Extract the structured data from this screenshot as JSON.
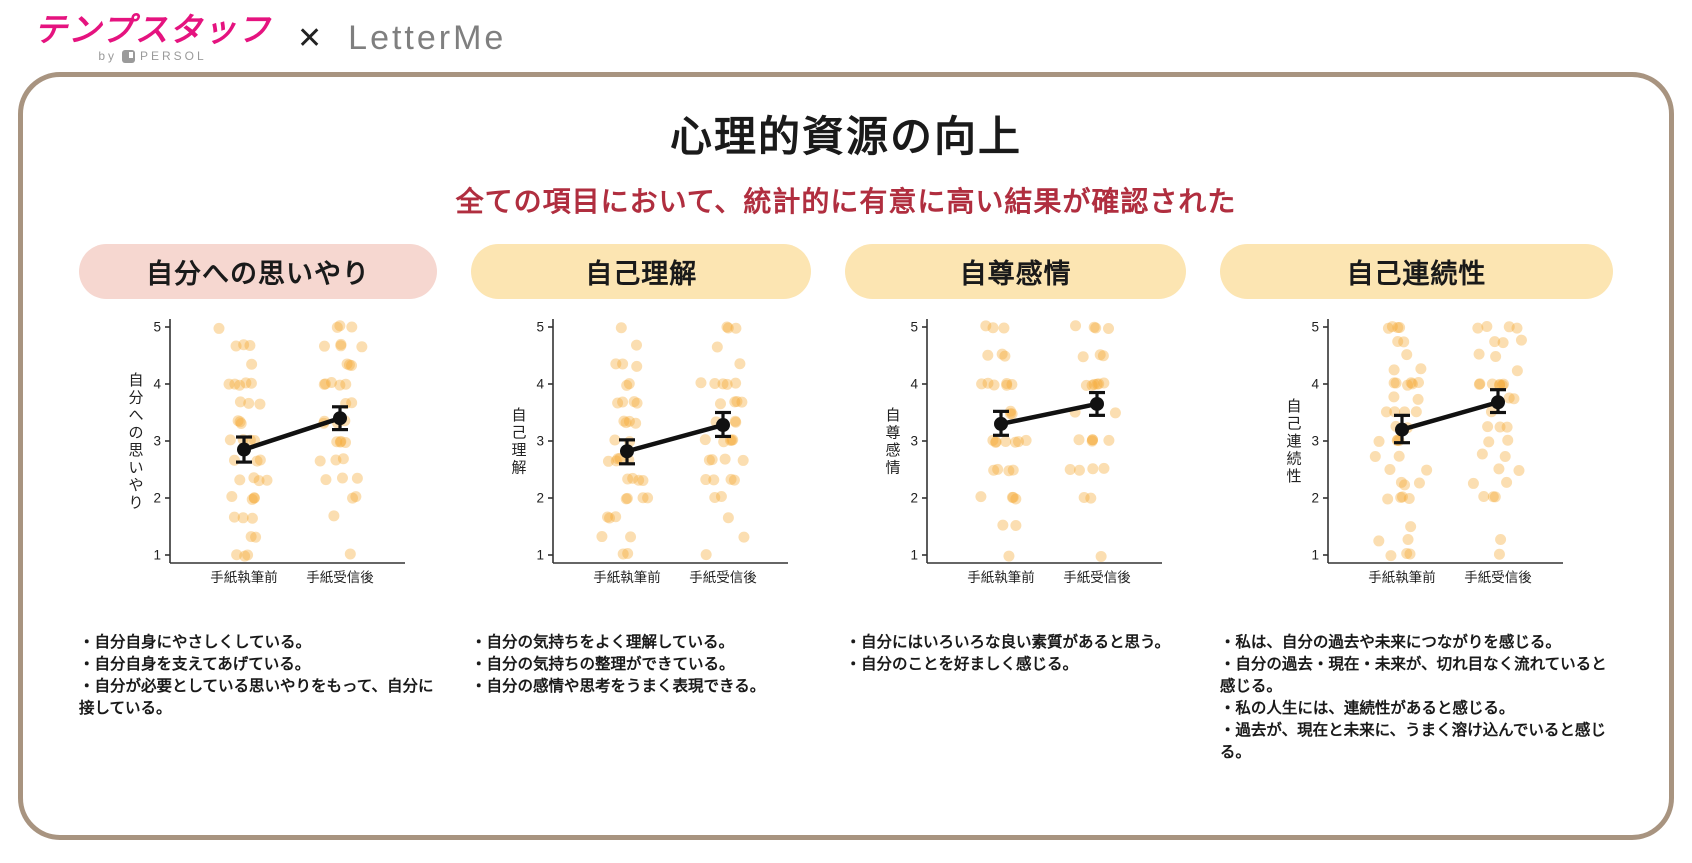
{
  "header": {
    "logo_main": "テンプスタッフ",
    "logo_by": "by",
    "logo_brand": "PERSOL",
    "separator": "✕",
    "partner_logo": "LetterMe"
  },
  "card": {
    "title": "心理的資源の向上",
    "subtitle": "全ての項目において、統計的に有意に高い結果が確認された"
  },
  "colors": {
    "accent_magenta": "#e5137f",
    "subtitle_red": "#b02e3f",
    "card_border_tan": "#a89480",
    "badge_pink": "#f6d7d0",
    "badge_cream": "#fce5b2",
    "dot_orange": "#f5a832",
    "mean_black": "#111111"
  },
  "panels": [
    {
      "badge": "自分への思いやり",
      "badge_style": "pink",
      "bullets": [
        "・自分自身にやさしくしている。",
        "・自分自身を支えてあげている。",
        "・自分が必要としている思いやりをもって、自分に接している。"
      ]
    },
    {
      "badge": "自己理解",
      "badge_style": "cream",
      "bullets": [
        "・自分の気持ちをよく理解している。",
        "・自分の気持ちの整理ができている。",
        "・自分の感情や思考をうまく表現できる。"
      ]
    },
    {
      "badge": "自尊感情",
      "badge_style": "cream",
      "bullets": [
        "・自分にはいろいろな良い素質があると思う。",
        "・自分のことを好ましく感じる。"
      ]
    },
    {
      "badge": "自己連続性",
      "badge_style": "cream",
      "bullets": [
        "・私は、自分の過去や未来につながりを感じる。",
        "・自分の過去・現在・未来が、切れ目なく流れていると感じる。",
        "・私の人生には、連続性があると感じる。",
        "・過去が、現在と未来に、うまく溶け込んでいると感じる。"
      ]
    }
  ],
  "chart_data": [
    {
      "type": "scatter",
      "title": "自分への思いやり",
      "ylabel": "自分への思いやり",
      "categories": [
        "手紙執筆前",
        "手紙受信後"
      ],
      "ylim": [
        1,
        5
      ],
      "yticks": [
        1,
        2,
        3,
        4,
        5
      ],
      "grid": false,
      "means": [
        2.85,
        3.4
      ],
      "ci": [
        [
          2.63,
          3.07
        ],
        [
          3.2,
          3.6
        ]
      ],
      "points": [
        [
          [
            5,
            1
          ],
          [
            4.67,
            3
          ],
          [
            4.33,
            1
          ],
          [
            4,
            5
          ],
          [
            3.67,
            3
          ],
          [
            3.33,
            3
          ],
          [
            3,
            4
          ],
          [
            2.67,
            3
          ],
          [
            2.33,
            4
          ],
          [
            2,
            4
          ],
          [
            1.67,
            3
          ],
          [
            1.33,
            2
          ],
          [
            1,
            3
          ]
        ],
        [
          [
            5,
            3
          ],
          [
            4.67,
            4
          ],
          [
            4.33,
            3
          ],
          [
            4,
            5
          ],
          [
            3.67,
            2
          ],
          [
            3.33,
            4
          ],
          [
            3,
            4
          ],
          [
            2.67,
            3
          ],
          [
            2.33,
            3
          ],
          [
            2,
            2
          ],
          [
            1.67,
            1
          ],
          [
            1,
            1
          ]
        ]
      ]
    },
    {
      "type": "scatter",
      "title": "自己理解",
      "ylabel": "自己理解",
      "categories": [
        "手紙執筆前",
        "手紙受信後"
      ],
      "ylim": [
        1,
        5
      ],
      "yticks": [
        1,
        2,
        3,
        4,
        5
      ],
      "grid": false,
      "means": [
        2.82,
        3.28
      ],
      "ci": [
        [
          2.6,
          3.02
        ],
        [
          3.08,
          3.5
        ]
      ],
      "points": [
        [
          [
            5,
            1
          ],
          [
            4.67,
            1
          ],
          [
            4.33,
            3
          ],
          [
            4,
            2
          ],
          [
            3.67,
            4
          ],
          [
            3.33,
            4
          ],
          [
            3,
            2
          ],
          [
            2.67,
            5
          ],
          [
            2.33,
            4
          ],
          [
            2,
            4
          ],
          [
            1.67,
            3
          ],
          [
            1.33,
            2
          ],
          [
            1,
            2
          ]
        ],
        [
          [
            5,
            3
          ],
          [
            4.67,
            1
          ],
          [
            4.33,
            1
          ],
          [
            4,
            5
          ],
          [
            3.67,
            4
          ],
          [
            3.33,
            3
          ],
          [
            3,
            5
          ],
          [
            2.67,
            4
          ],
          [
            2.33,
            4
          ],
          [
            2,
            2
          ],
          [
            1.67,
            1
          ],
          [
            1.33,
            1
          ],
          [
            1,
            1
          ]
        ]
      ]
    },
    {
      "type": "scatter",
      "title": "自尊感情",
      "ylabel": "自尊感情",
      "categories": [
        "手紙執筆前",
        "手紙受信後"
      ],
      "ylim": [
        1,
        5
      ],
      "yticks": [
        1,
        2,
        3,
        4,
        5
      ],
      "grid": false,
      "means": [
        3.3,
        3.65
      ],
      "ci": [
        [
          3.1,
          3.52
        ],
        [
          3.45,
          3.85
        ]
      ],
      "points": [
        [
          [
            5,
            3
          ],
          [
            4.5,
            3
          ],
          [
            4,
            6
          ],
          [
            3.5,
            3
          ],
          [
            3,
            7
          ],
          [
            2.5,
            4
          ],
          [
            2,
            4
          ],
          [
            1.5,
            2
          ],
          [
            1,
            1
          ]
        ],
        [
          [
            5,
            4
          ],
          [
            4.5,
            3
          ],
          [
            4,
            6
          ],
          [
            3.5,
            2
          ],
          [
            3,
            5
          ],
          [
            2.5,
            4
          ],
          [
            2,
            2
          ],
          [
            1,
            1
          ]
        ]
      ]
    },
    {
      "type": "scatter",
      "title": "自己連続性",
      "ylabel": "自己連続性",
      "categories": [
        "手紙執筆前",
        "手紙受信後"
      ],
      "ylim": [
        1,
        5
      ],
      "yticks": [
        1,
        2,
        3,
        4,
        5
      ],
      "grid": false,
      "means": [
        3.2,
        3.68
      ],
      "ci": [
        [
          2.97,
          3.45
        ],
        [
          3.5,
          3.9
        ]
      ],
      "points": [
        [
          [
            5,
            4
          ],
          [
            4.75,
            2
          ],
          [
            4.5,
            1
          ],
          [
            4.25,
            2
          ],
          [
            4,
            6
          ],
          [
            3.75,
            2
          ],
          [
            3.5,
            4
          ],
          [
            3.25,
            2
          ],
          [
            3,
            4
          ],
          [
            2.75,
            2
          ],
          [
            2.5,
            2
          ],
          [
            2.25,
            3
          ],
          [
            2,
            4
          ],
          [
            1.5,
            1
          ],
          [
            1.25,
            2
          ],
          [
            1,
            3
          ]
        ],
        [
          [
            5,
            4
          ],
          [
            4.75,
            3
          ],
          [
            4.5,
            2
          ],
          [
            4.25,
            1
          ],
          [
            4,
            7
          ],
          [
            3.75,
            2
          ],
          [
            3.5,
            1
          ],
          [
            3.25,
            3
          ],
          [
            3,
            2
          ],
          [
            2.75,
            2
          ],
          [
            2.5,
            2
          ],
          [
            2.25,
            2
          ],
          [
            2,
            3
          ],
          [
            1.25,
            1
          ],
          [
            1,
            1
          ]
        ]
      ]
    }
  ]
}
